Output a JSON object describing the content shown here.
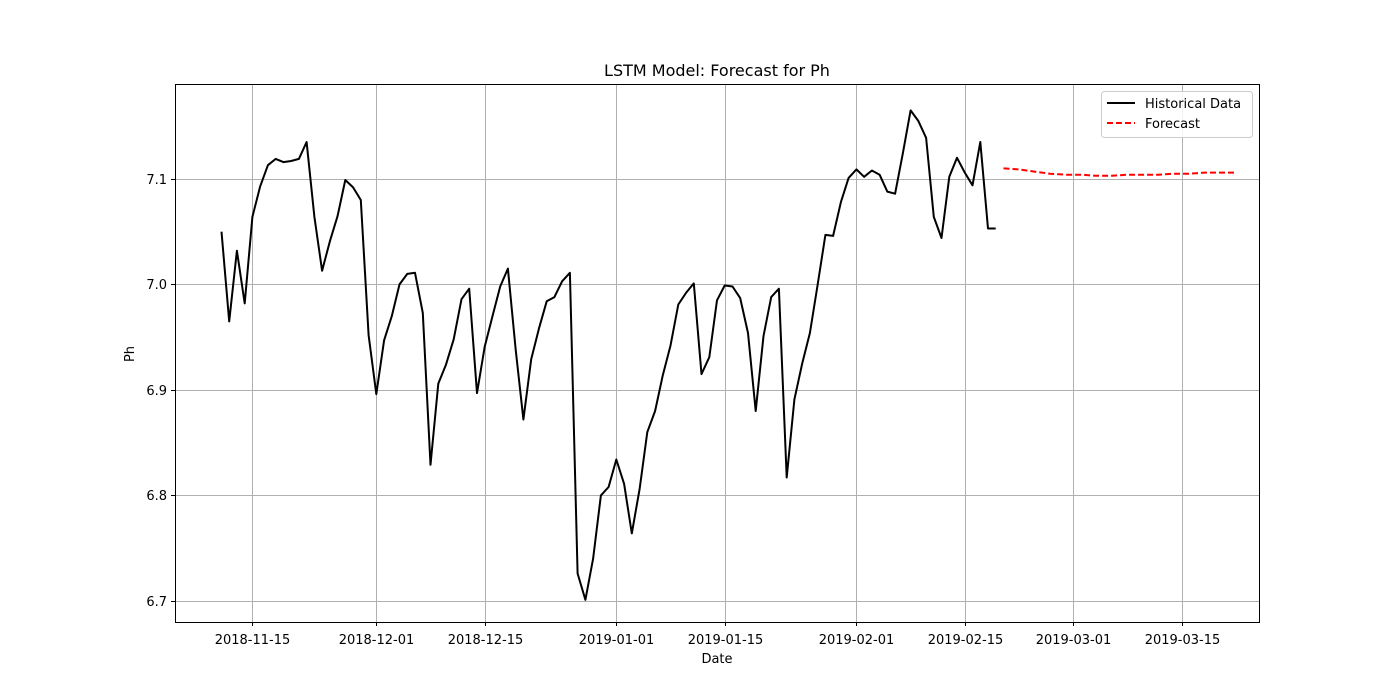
{
  "chart_data": {
    "type": "line",
    "title": "LSTM Model: Forecast for Ph",
    "xlabel": "Date",
    "ylabel": "Ph",
    "xlim": [
      "2018-11-05",
      "2019-03-25"
    ],
    "ylim": [
      6.68,
      7.19
    ],
    "grid": true,
    "legend_position": "top-right",
    "x_ticks": [
      "2018-11-15",
      "2018-12-01",
      "2018-12-15",
      "2019-01-01",
      "2019-01-15",
      "2019-02-01",
      "2019-02-15",
      "2019-03-01",
      "2019-03-15"
    ],
    "y_ticks": [
      "6.7",
      "6.8",
      "6.9",
      "7.0",
      "7.1"
    ],
    "series": [
      {
        "name": "Historical Data",
        "color": "#000000",
        "style": "solid",
        "x": [
          "2018-11-11",
          "2018-11-12",
          "2018-11-13",
          "2018-11-14",
          "2018-11-15",
          "2018-11-16",
          "2018-11-17",
          "2018-11-18",
          "2018-11-19",
          "2018-11-20",
          "2018-11-21",
          "2018-11-22",
          "2018-11-23",
          "2018-11-24",
          "2018-11-25",
          "2018-11-26",
          "2018-11-27",
          "2018-11-28",
          "2018-11-29",
          "2018-11-30",
          "2018-12-01",
          "2018-12-02",
          "2018-12-03",
          "2018-12-04",
          "2018-12-05",
          "2018-12-06",
          "2018-12-07",
          "2018-12-08",
          "2018-12-09",
          "2018-12-10",
          "2018-12-11",
          "2018-12-12",
          "2018-12-13",
          "2018-12-14",
          "2018-12-15",
          "2018-12-16",
          "2018-12-17",
          "2018-12-18",
          "2018-12-19",
          "2018-12-20",
          "2018-12-21",
          "2018-12-22",
          "2018-12-23",
          "2018-12-24",
          "2018-12-25",
          "2018-12-26",
          "2018-12-27",
          "2018-12-28",
          "2018-12-29",
          "2018-12-30",
          "2018-12-31",
          "2019-01-01",
          "2019-01-02",
          "2019-01-03",
          "2019-01-04",
          "2019-01-05",
          "2019-01-06",
          "2019-01-07",
          "2019-01-08",
          "2019-01-09",
          "2019-01-10",
          "2019-01-11",
          "2019-01-12",
          "2019-01-13",
          "2019-01-14",
          "2019-01-15",
          "2019-01-16",
          "2019-01-17",
          "2019-01-18",
          "2019-01-19",
          "2019-01-20",
          "2019-01-21",
          "2019-01-22",
          "2019-01-23",
          "2019-01-24",
          "2019-01-25",
          "2019-01-26",
          "2019-01-27",
          "2019-01-28",
          "2019-01-29",
          "2019-01-30",
          "2019-01-31",
          "2019-02-01",
          "2019-02-02",
          "2019-02-03",
          "2019-02-04",
          "2019-02-05",
          "2019-02-06",
          "2019-02-07",
          "2019-02-08",
          "2019-02-09",
          "2019-02-10",
          "2019-02-11",
          "2019-02-12",
          "2019-02-13",
          "2019-02-14",
          "2019-02-15",
          "2019-02-16",
          "2019-02-17",
          "2019-02-18",
          "2019-02-19"
        ],
        "y": [
          7.05,
          6.965,
          7.032,
          6.982,
          7.064,
          7.093,
          7.113,
          7.119,
          7.116,
          7.117,
          7.119,
          7.135,
          7.064,
          7.013,
          7.041,
          7.065,
          7.099,
          7.092,
          7.08,
          6.952,
          6.896,
          6.947,
          6.97,
          7.0,
          7.01,
          7.011,
          6.973,
          6.829,
          6.906,
          6.924,
          6.948,
          6.986,
          6.996,
          6.897,
          6.941,
          6.97,
          6.998,
          7.015,
          6.938,
          6.872,
          6.929,
          6.958,
          6.984,
          6.988,
          7.003,
          7.011,
          6.726,
          6.701,
          6.74,
          6.8,
          6.808,
          6.834,
          6.811,
          6.764,
          6.806,
          6.86,
          6.88,
          6.914,
          6.942,
          6.981,
          6.992,
          7.001,
          6.915,
          6.931,
          6.985,
          6.999,
          6.998,
          6.987,
          6.954,
          6.88,
          6.951,
          6.988,
          6.996,
          6.817,
          6.891,
          6.925,
          6.954,
          7.0,
          7.047,
          7.046,
          7.078,
          7.101,
          7.109,
          7.102,
          7.108,
          7.104,
          7.088,
          7.086,
          7.124,
          7.165,
          7.155,
          7.139,
          7.064,
          7.044,
          7.102,
          7.12,
          7.106,
          7.094,
          7.135,
          7.053,
          7.053
        ]
      },
      {
        "name": "Forecast",
        "color": "#ff0000",
        "style": "dashed",
        "x": [
          "2019-02-20",
          "2019-02-22",
          "2019-02-24",
          "2019-02-26",
          "2019-02-28",
          "2019-03-02",
          "2019-03-04",
          "2019-03-06",
          "2019-03-08",
          "2019-03-10",
          "2019-03-12",
          "2019-03-14",
          "2019-03-16",
          "2019-03-18",
          "2019-03-20",
          "2019-03-22"
        ],
        "y": [
          7.11,
          7.109,
          7.107,
          7.105,
          7.104,
          7.104,
          7.103,
          7.103,
          7.104,
          7.104,
          7.104,
          7.105,
          7.105,
          7.106,
          7.106,
          7.106
        ]
      }
    ]
  }
}
